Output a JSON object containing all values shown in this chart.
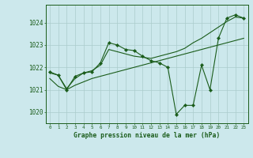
{
  "xlabel": "Graphe pression niveau de la mer (hPa)",
  "x_ticks": [
    0,
    1,
    2,
    3,
    4,
    5,
    6,
    7,
    8,
    9,
    10,
    11,
    12,
    13,
    14,
    15,
    16,
    17,
    18,
    19,
    20,
    21,
    22,
    23
  ],
  "ylim": [
    1019.5,
    1024.8
  ],
  "yticks": [
    1020,
    1021,
    1022,
    1023,
    1024
  ],
  "background_color": "#cce8ec",
  "grid_color": "#aacccc",
  "line_color": "#1a5c1a",
  "series": [
    {
      "name": "volatile_with_markers",
      "x": [
        0,
        1,
        2,
        3,
        4,
        5,
        6,
        7,
        8,
        9,
        10,
        11,
        12,
        13,
        14,
        15,
        16,
        17,
        18,
        19,
        20,
        21,
        22,
        23
      ],
      "y": [
        1021.8,
        1021.65,
        1021.0,
        1021.6,
        1021.75,
        1021.8,
        1022.2,
        1023.1,
        1023.0,
        1022.8,
        1022.75,
        1022.5,
        1022.3,
        1022.2,
        1022.0,
        1019.9,
        1020.3,
        1020.3,
        1022.1,
        1021.0,
        1023.3,
        1024.2,
        1024.35,
        1024.2
      ],
      "with_markers": true
    },
    {
      "name": "upper_trend",
      "x": [
        0,
        1,
        2,
        3,
        4,
        5,
        6,
        7,
        8,
        9,
        10,
        11,
        12,
        13,
        14,
        15,
        16,
        17,
        18,
        19,
        20,
        21,
        22,
        23
      ],
      "y": [
        1021.75,
        1021.65,
        1021.05,
        1021.5,
        1021.75,
        1021.85,
        1022.1,
        1022.8,
        1022.7,
        1022.6,
        1022.5,
        1022.45,
        1022.4,
        1022.5,
        1022.6,
        1022.7,
        1022.85,
        1023.1,
        1023.3,
        1023.55,
        1023.8,
        1024.05,
        1024.25,
        1024.2
      ],
      "with_markers": false
    },
    {
      "name": "lower_trend",
      "x": [
        0,
        1,
        2,
        3,
        4,
        5,
        6,
        7,
        8,
        9,
        10,
        11,
        12,
        13,
        14,
        15,
        16,
        17,
        18,
        19,
        20,
        21,
        22,
        23
      ],
      "y": [
        1021.5,
        1021.15,
        1021.0,
        1021.2,
        1021.35,
        1021.5,
        1021.6,
        1021.7,
        1021.8,
        1021.9,
        1022.0,
        1022.1,
        1022.2,
        1022.3,
        1022.4,
        1022.5,
        1022.6,
        1022.7,
        1022.8,
        1022.9,
        1023.0,
        1023.1,
        1023.2,
        1023.3
      ],
      "with_markers": false
    }
  ]
}
